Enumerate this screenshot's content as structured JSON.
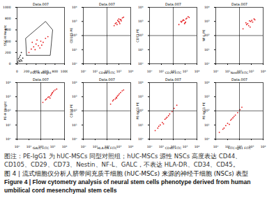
{
  "chart_data": [
    {
      "type": "scatter",
      "title": "Data.007",
      "x_label": "FSC-H Height",
      "y_label": "SSC-H Height",
      "xlim": [
        0,
        1000
      ],
      "ylim": [
        0,
        1000
      ],
      "xticks": [
        0,
        200,
        400,
        600,
        800,
        1000
      ],
      "yticks": [
        0,
        200,
        400,
        600,
        800,
        1000
      ],
      "series": [
        {
          "color": "#222222",
          "x": [
            20,
            40,
            60,
            30,
            80,
            50,
            100,
            70,
            120,
            90
          ],
          "y": [
            30,
            60,
            40,
            90,
            70,
            120,
            50,
            150,
            100,
            200
          ]
        },
        {
          "color": "#e41a1c",
          "x": [
            250,
            300,
            350,
            400,
            450,
            500,
            550,
            600,
            380,
            480,
            420,
            520,
            650,
            320
          ],
          "y": [
            200,
            260,
            300,
            350,
            320,
            400,
            380,
            450,
            250,
            280,
            420,
            330,
            480,
            380
          ]
        }
      ],
      "gate_polygon": {
        "x": [
          200,
          700,
          750,
          600,
          180
        ],
        "y": [
          150,
          150,
          600,
          750,
          450
        ]
      }
    },
    {
      "type": "scatter",
      "title": "Data.007",
      "x_label": "CD44 FITC",
      "y_label": "CD105 PE",
      "log": true,
      "xlim": [
        1,
        10000
      ],
      "ylim": [
        1,
        10000
      ],
      "xticks": [
        {
          "value": 1,
          "label": "10⁰"
        },
        {
          "value": 10,
          "label": "10¹"
        },
        {
          "value": 100,
          "label": "10²"
        },
        {
          "value": 1000,
          "label": "10³"
        },
        {
          "value": 10000,
          "label": "10⁴"
        }
      ],
      "yticks": [
        {
          "value": 1,
          "label": "10⁰"
        },
        {
          "value": 10,
          "label": "10¹"
        },
        {
          "value": 100,
          "label": "10²"
        },
        {
          "value": 1000,
          "label": "10³"
        },
        {
          "value": 10000,
          "label": "10⁴"
        }
      ],
      "quadrant": {
        "x": 100,
        "y": 100
      },
      "series": [
        {
          "color": "#e41a1c",
          "x": [
            400,
            600,
            900,
            1200,
            1500,
            800,
            2000,
            700,
            1100,
            1600,
            500,
            1000,
            2500,
            1300
          ],
          "y": [
            500,
            800,
            1000,
            700,
            1400,
            1200,
            1800,
            600,
            900,
            1100,
            700,
            1500,
            2000,
            1300
          ]
        }
      ]
    },
    {
      "type": "scatter",
      "title": "Data.007",
      "x_label": "CD29 FITC",
      "y_label": "CD73 PE",
      "log": true,
      "xlim": [
        1,
        10000
      ],
      "ylim": [
        1,
        10000
      ],
      "xticks": [
        {
          "value": 1,
          "label": "10⁰"
        },
        {
          "value": 10,
          "label": "10¹"
        },
        {
          "value": 100,
          "label": "10²"
        },
        {
          "value": 1000,
          "label": "10³"
        },
        {
          "value": 10000,
          "label": "10⁴"
        }
      ],
      "yticks": [
        {
          "value": 1,
          "label": "10⁰"
        },
        {
          "value": 10,
          "label": "10¹"
        },
        {
          "value": 100,
          "label": "10²"
        },
        {
          "value": 1000,
          "label": "10³"
        },
        {
          "value": 10000,
          "label": "10⁴"
        }
      ],
      "quadrant": {
        "x": 100,
        "y": 100
      },
      "series": [
        {
          "color": "#e41a1c",
          "x": [
            300,
            500,
            700,
            1000,
            1400,
            600,
            1800,
            900,
            1200,
            450,
            800,
            2200,
            1100
          ],
          "y": [
            600,
            900,
            1300,
            800,
            1700,
            1100,
            2200,
            700,
            1500,
            1000,
            1200,
            1900,
            900
          ]
        }
      ]
    },
    {
      "type": "scatter",
      "title": "Data.007",
      "x_label": "Nestin FITC",
      "y_label": "NF-L PE",
      "log": true,
      "xlim": [
        1,
        10000
      ],
      "ylim": [
        1,
        10000
      ],
      "xticks": [
        {
          "value": 1,
          "label": "10⁰"
        },
        {
          "value": 10,
          "label": "10¹"
        },
        {
          "value": 100,
          "label": "10²"
        },
        {
          "value": 1000,
          "label": "10³"
        },
        {
          "value": 10000,
          "label": "10⁴"
        }
      ],
      "yticks": [
        {
          "value": 1,
          "label": "10⁰"
        },
        {
          "value": 10,
          "label": "10¹"
        },
        {
          "value": 100,
          "label": "10²"
        },
        {
          "value": 1000,
          "label": "10³"
        },
        {
          "value": 10000,
          "label": "10⁴"
        }
      ],
      "quadrant": {
        "x": 100,
        "y": 100
      },
      "series": [
        {
          "color": "#e41a1c",
          "x": [
            200,
            400,
            600,
            900,
            1300,
            500,
            1700,
            800,
            1100,
            350,
            2000,
            700
          ],
          "y": [
            300,
            600,
            500,
            1000,
            900,
            700,
            1500,
            400,
            1200,
            800,
            1300,
            1100
          ]
        }
      ]
    },
    {
      "type": "scatter",
      "title": "Data.007",
      "x_label": "GALC FITC",
      "y_label": "PE-H Height",
      "log": true,
      "xlim": [
        1,
        10000
      ],
      "ylim": [
        1,
        10000
      ],
      "xticks": [
        {
          "value": 1,
          "label": "10⁰"
        },
        {
          "value": 10,
          "label": "10¹"
        },
        {
          "value": 100,
          "label": "10²"
        },
        {
          "value": 1000,
          "label": "10³"
        },
        {
          "value": 10000,
          "label": "10⁴"
        }
      ],
      "yticks": [
        {
          "value": 1,
          "label": "10⁰"
        },
        {
          "value": 10,
          "label": "10¹"
        },
        {
          "value": 100,
          "label": "10²"
        },
        {
          "value": 1000,
          "label": "10³"
        },
        {
          "value": 10000,
          "label": "10⁴"
        }
      ],
      "quadrant": {
        "x": 100,
        "y": 100
      },
      "series": [
        {
          "color": "#e41a1c",
          "x": [
            150,
            300,
            500,
            800,
            1200,
            400,
            1600,
            700,
            1000,
            250,
            2200,
            600,
            900
          ],
          "y": [
            400,
            700,
            1000,
            1500,
            2500,
            900,
            3000,
            1200,
            2000,
            600,
            3500,
            800,
            1800
          ]
        }
      ]
    },
    {
      "type": "scatter",
      "title": "Data.007",
      "x_label": "HLA-DR FITC",
      "y_label": "CD34 PE",
      "log": true,
      "xlim": [
        1,
        10000
      ],
      "ylim": [
        1,
        10000
      ],
      "xticks": [
        {
          "value": 1,
          "label": "10⁰"
        },
        {
          "value": 10,
          "label": "10¹"
        },
        {
          "value": 100,
          "label": "10²"
        },
        {
          "value": 1000,
          "label": "10³"
        },
        {
          "value": 10000,
          "label": "10⁴"
        }
      ],
      "yticks": [
        {
          "value": 1,
          "label": "10⁰"
        },
        {
          "value": 10,
          "label": "10¹"
        },
        {
          "value": 100,
          "label": "10²"
        },
        {
          "value": 1000,
          "label": "10³"
        },
        {
          "value": 10000,
          "label": "10⁴"
        }
      ],
      "quadrant": {
        "x": 100,
        "y": 100
      },
      "series": [
        {
          "color": "#e41a1c",
          "x": [
            200,
            350,
            600,
            900,
            1400,
            500,
            1900,
            750,
            1100,
            300,
            2500,
            650
          ],
          "y": [
            300,
            600,
            900,
            1300,
            2000,
            700,
            2600,
            1100,
            1600,
            500,
            3000,
            800
          ]
        }
      ]
    },
    {
      "type": "scatter",
      "title": "Data.007",
      "x_label": "CD45 FITC",
      "y_label": "PE-IgG1 PE",
      "log": true,
      "xlim": [
        1,
        10000
      ],
      "ylim": [
        1,
        10000
      ],
      "xticks": [
        {
          "value": 1,
          "label": "10⁰"
        },
        {
          "value": 10,
          "label": "10¹"
        },
        {
          "value": 100,
          "label": "10²"
        },
        {
          "value": 1000,
          "label": "10³"
        },
        {
          "value": 10000,
          "label": "10⁴"
        }
      ],
      "yticks": [
        {
          "value": 1,
          "label": "10⁰"
        },
        {
          "value": 10,
          "label": "10¹"
        },
        {
          "value": 100,
          "label": "10²"
        },
        {
          "value": 1000,
          "label": "10³"
        },
        {
          "value": 10000,
          "label": "10⁴"
        }
      ],
      "quadrant": {
        "x": 100,
        "y": 100
      },
      "series": [
        {
          "color": "#e41a1c",
          "x": [
            3,
            5,
            8,
            12,
            20,
            30,
            50,
            80,
            120,
            200,
            15,
            40,
            6,
            25
          ],
          "y": [
            4,
            6,
            10,
            15,
            25,
            35,
            60,
            90,
            150,
            250,
            12,
            45,
            8,
            30
          ]
        }
      ]
    },
    {
      "type": "scatter",
      "title": "Data.007",
      "x_label": "FITC-IgG1 FITC",
      "y_label": "PE-IgG1 PE",
      "log": true,
      "xlim": [
        1,
        10000
      ],
      "ylim": [
        1,
        10000
      ],
      "xticks": [
        {
          "value": 1,
          "label": "10⁰"
        },
        {
          "value": 10,
          "label": "10¹"
        },
        {
          "value": 100,
          "label": "10²"
        },
        {
          "value": 1000,
          "label": "10³"
        },
        {
          "value": 10000,
          "label": "10⁴"
        }
      ],
      "yticks": [
        {
          "value": 1,
          "label": "10⁰"
        },
        {
          "value": 10,
          "label": "10¹"
        },
        {
          "value": 100,
          "label": "10²"
        },
        {
          "value": 1000,
          "label": "10³"
        },
        {
          "value": 10000,
          "label": "10⁴"
        }
      ],
      "quadrant": {
        "x": 100,
        "y": 100
      },
      "series": [
        {
          "color": "#e41a1c",
          "x": [
            2,
            4,
            7,
            10,
            18,
            28,
            45,
            70,
            110,
            160,
            14,
            35,
            5,
            22
          ],
          "y": [
            3,
            5,
            9,
            13,
            22,
            32,
            50,
            75,
            120,
            180,
            11,
            40,
            6,
            26
          ]
        }
      ]
    }
  ],
  "caption": {
    "note": "图注：PE-IgG1 为 hUC-MSCs 同型对照组；hUC-MSCs 源性 NSCs 高度表达 CD44、CD105、CD29、CD73、Nestin、NF-L、GALC，不表达 HLA-DR、CD34、CD45。",
    "title_cn": "图 4 | 流式细胞仪分析人脐带间充质干细胞 (hUC-MSCs) 来源的神经干细胞 (NSCs) 表型",
    "title_en": "Figure 4 | Flow cytometry analysis of neural stem cells phenotype derived from human umbilical cord mesenchymal stem cells"
  }
}
